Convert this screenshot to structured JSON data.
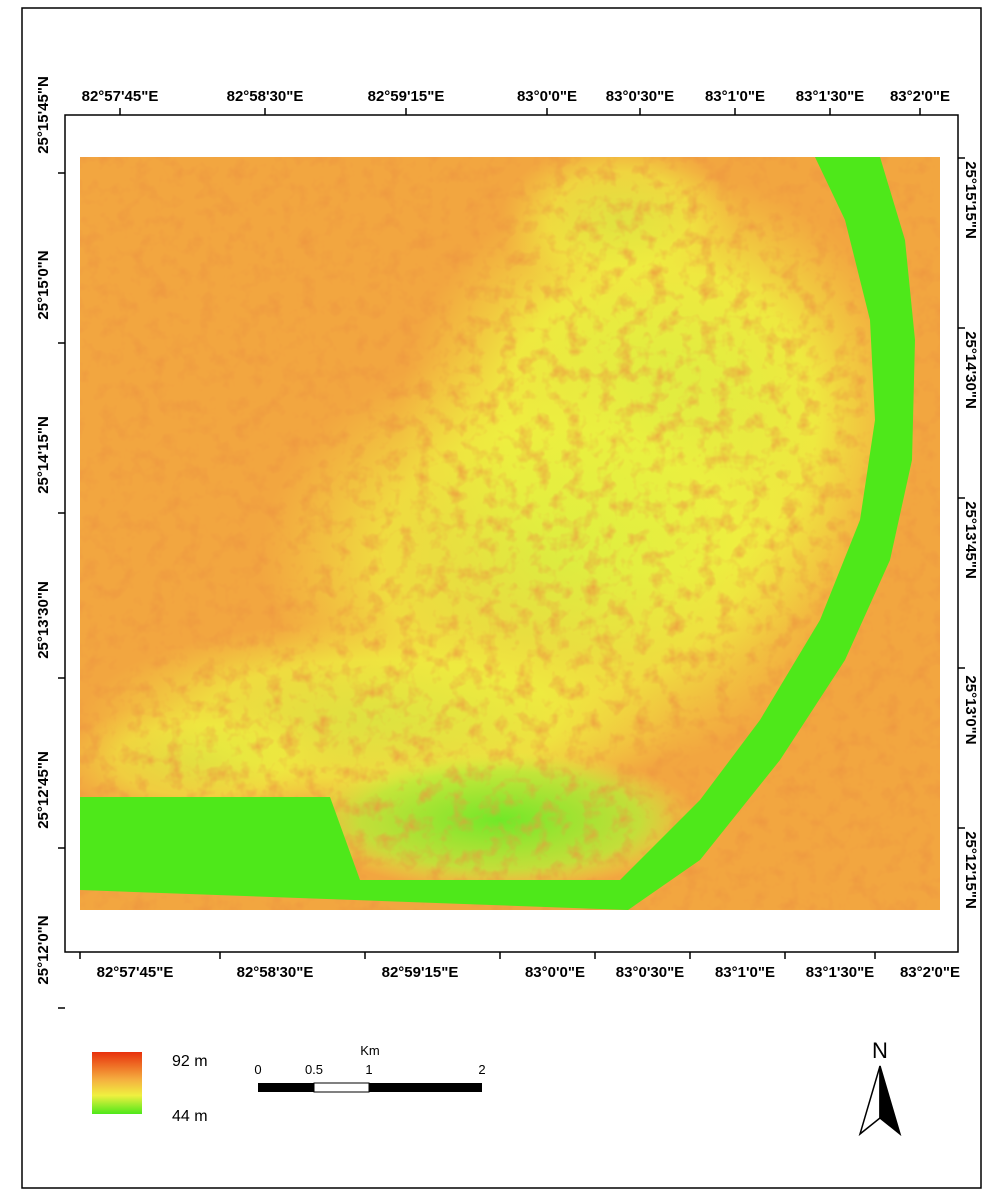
{
  "map": {
    "top_ticks": [
      "82°57'45\"E",
      "82°58'30\"E",
      "82°59'15\"E",
      "83°0'0\"E",
      "83°0'30\"E",
      "83°1'0\"E",
      "83°1'30\"E",
      "83°2'0\"E"
    ],
    "bottom_ticks": [
      "82°57'45\"E",
      "82°58'30\"E",
      "82°59'15\"E",
      "83°0'0\"E",
      "83°0'30\"E",
      "83°1'0\"E",
      "83°1'30\"E",
      "83°2'0\"E"
    ],
    "left_ticks": [
      "25°15'45\"N",
      "25°15'0\"N",
      "25°14'15\"N",
      "25°13'30\"N",
      "25°12'45\"N",
      "25°12'0\"N"
    ],
    "right_ticks": [
      "25°15'15\"N",
      "25°14'30\"N",
      "25°13'45\"N",
      "25°13'0\"N",
      "25°12'15\"N"
    ],
    "legend": {
      "high": "92 m",
      "low": "44 m"
    },
    "scale_bar": {
      "unit": "Km",
      "labels": [
        "0",
        "0.5",
        "1",
        "2"
      ]
    },
    "north": "N"
  }
}
